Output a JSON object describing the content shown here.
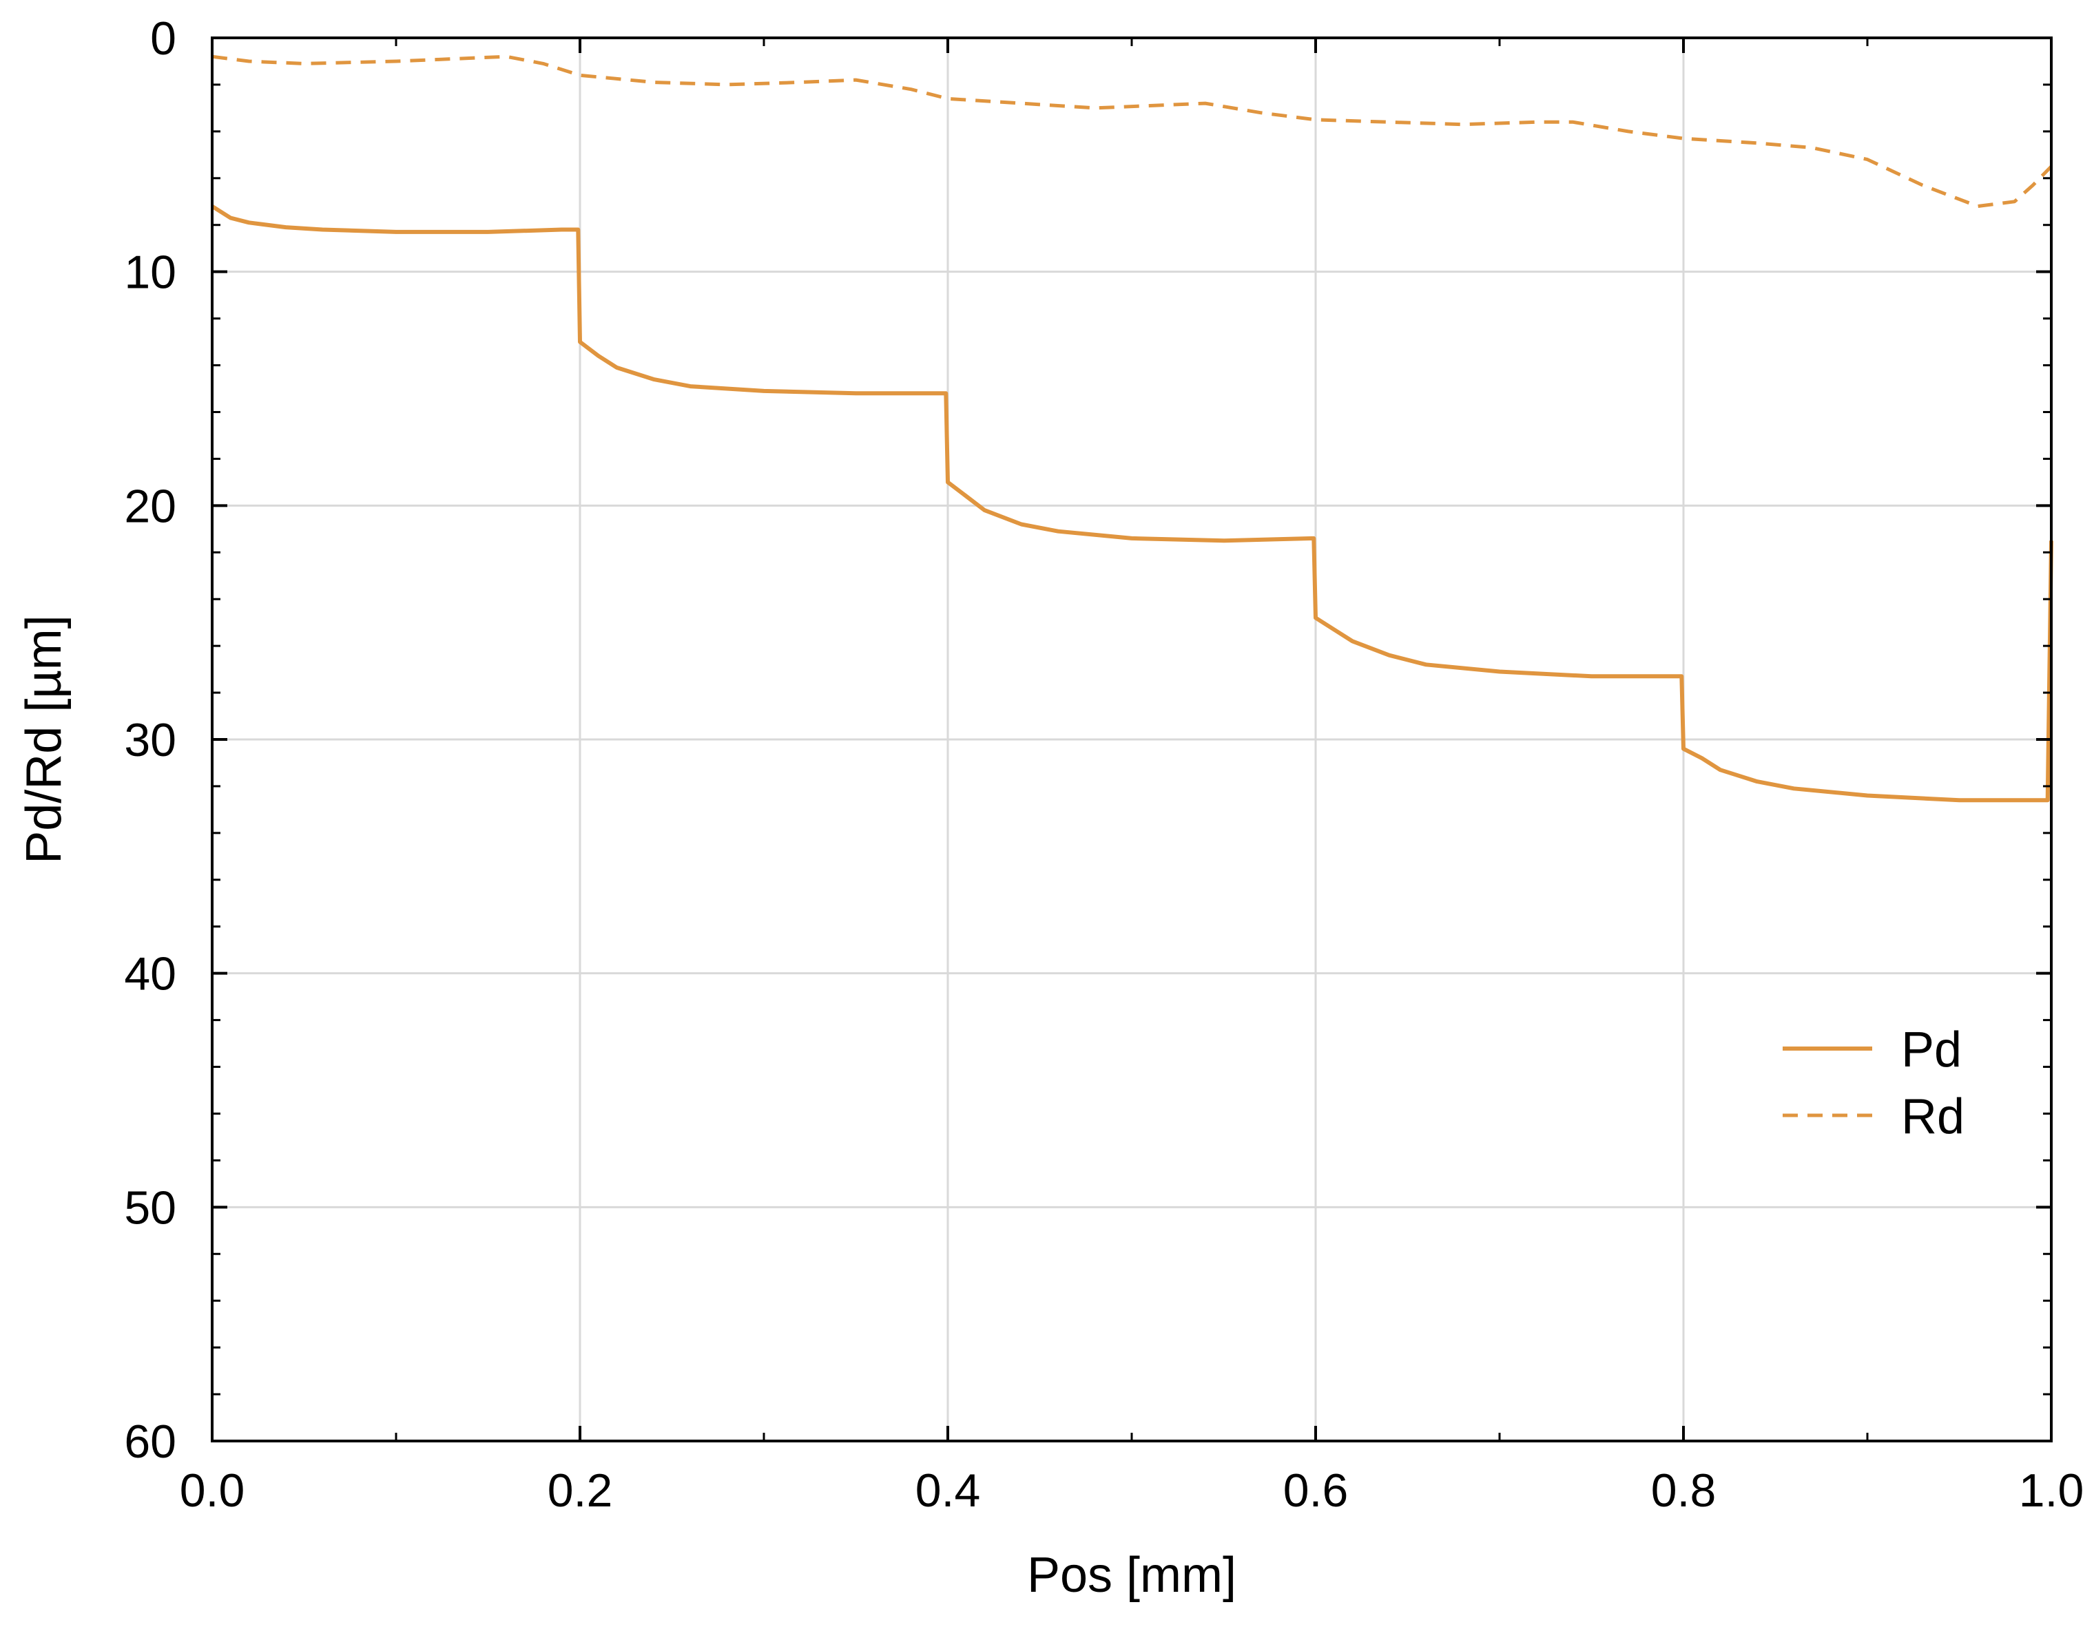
{
  "chart_data": {
    "type": "line",
    "title": "",
    "xlabel": "Pos [mm]",
    "ylabel": "Pd/Rd [µm]",
    "xlim": [
      0.0,
      1.0
    ],
    "ylim": [
      0,
      60
    ],
    "y_inverted": true,
    "x_ticks": [
      0.0,
      0.2,
      0.4,
      0.6,
      0.8,
      1.0
    ],
    "x_tick_labels": [
      "0.0",
      "0.2",
      "0.4",
      "0.6",
      "0.8",
      "1.0"
    ],
    "y_ticks": [
      0,
      10,
      20,
      30,
      40,
      50,
      60
    ],
    "y_tick_labels": [
      "0",
      "10",
      "20",
      "30",
      "40",
      "50",
      "60"
    ],
    "grid": true,
    "legend_position": "right",
    "colors": {
      "series": "#e0953f",
      "grid": "#d9d9d9",
      "axis": "#000000"
    },
    "series": [
      {
        "name": "Pd",
        "style": "solid",
        "points": [
          [
            0.0,
            7.2
          ],
          [
            0.01,
            7.7
          ],
          [
            0.02,
            7.9
          ],
          [
            0.04,
            8.1
          ],
          [
            0.06,
            8.2
          ],
          [
            0.1,
            8.3
          ],
          [
            0.15,
            8.3
          ],
          [
            0.19,
            8.2
          ],
          [
            0.199,
            8.2
          ],
          [
            0.2,
            13.0
          ],
          [
            0.21,
            13.6
          ],
          [
            0.22,
            14.1
          ],
          [
            0.24,
            14.6
          ],
          [
            0.26,
            14.9
          ],
          [
            0.3,
            15.1
          ],
          [
            0.35,
            15.2
          ],
          [
            0.399,
            15.2
          ],
          [
            0.4,
            19.0
          ],
          [
            0.41,
            19.6
          ],
          [
            0.42,
            20.2
          ],
          [
            0.44,
            20.8
          ],
          [
            0.46,
            21.1
          ],
          [
            0.5,
            21.4
          ],
          [
            0.55,
            21.5
          ],
          [
            0.599,
            21.4
          ],
          [
            0.6,
            24.8
          ],
          [
            0.61,
            25.3
          ],
          [
            0.62,
            25.8
          ],
          [
            0.64,
            26.4
          ],
          [
            0.66,
            26.8
          ],
          [
            0.7,
            27.1
          ],
          [
            0.75,
            27.3
          ],
          [
            0.799,
            27.3
          ],
          [
            0.8,
            30.4
          ],
          [
            0.81,
            30.8
          ],
          [
            0.82,
            31.3
          ],
          [
            0.84,
            31.8
          ],
          [
            0.86,
            32.1
          ],
          [
            0.9,
            32.4
          ],
          [
            0.95,
            32.6
          ],
          [
            0.998,
            32.6
          ],
          [
            1.0,
            21.5
          ]
        ]
      },
      {
        "name": "Rd",
        "style": "dashed",
        "points": [
          [
            0.0,
            0.8
          ],
          [
            0.02,
            1.0
          ],
          [
            0.05,
            1.1
          ],
          [
            0.1,
            1.0
          ],
          [
            0.13,
            0.9
          ],
          [
            0.16,
            0.8
          ],
          [
            0.18,
            1.1
          ],
          [
            0.2,
            1.6
          ],
          [
            0.24,
            1.9
          ],
          [
            0.28,
            2.0
          ],
          [
            0.32,
            1.9
          ],
          [
            0.35,
            1.8
          ],
          [
            0.38,
            2.2
          ],
          [
            0.4,
            2.6
          ],
          [
            0.44,
            2.8
          ],
          [
            0.48,
            3.0
          ],
          [
            0.51,
            2.9
          ],
          [
            0.54,
            2.8
          ],
          [
            0.57,
            3.2
          ],
          [
            0.6,
            3.5
          ],
          [
            0.64,
            3.6
          ],
          [
            0.68,
            3.7
          ],
          [
            0.72,
            3.6
          ],
          [
            0.74,
            3.6
          ],
          [
            0.77,
            4.0
          ],
          [
            0.8,
            4.3
          ],
          [
            0.84,
            4.5
          ],
          [
            0.87,
            4.7
          ],
          [
            0.9,
            5.2
          ],
          [
            0.93,
            6.3
          ],
          [
            0.96,
            7.2
          ],
          [
            0.98,
            7.0
          ],
          [
            0.99,
            6.3
          ],
          [
            1.0,
            5.5
          ]
        ]
      }
    ]
  }
}
